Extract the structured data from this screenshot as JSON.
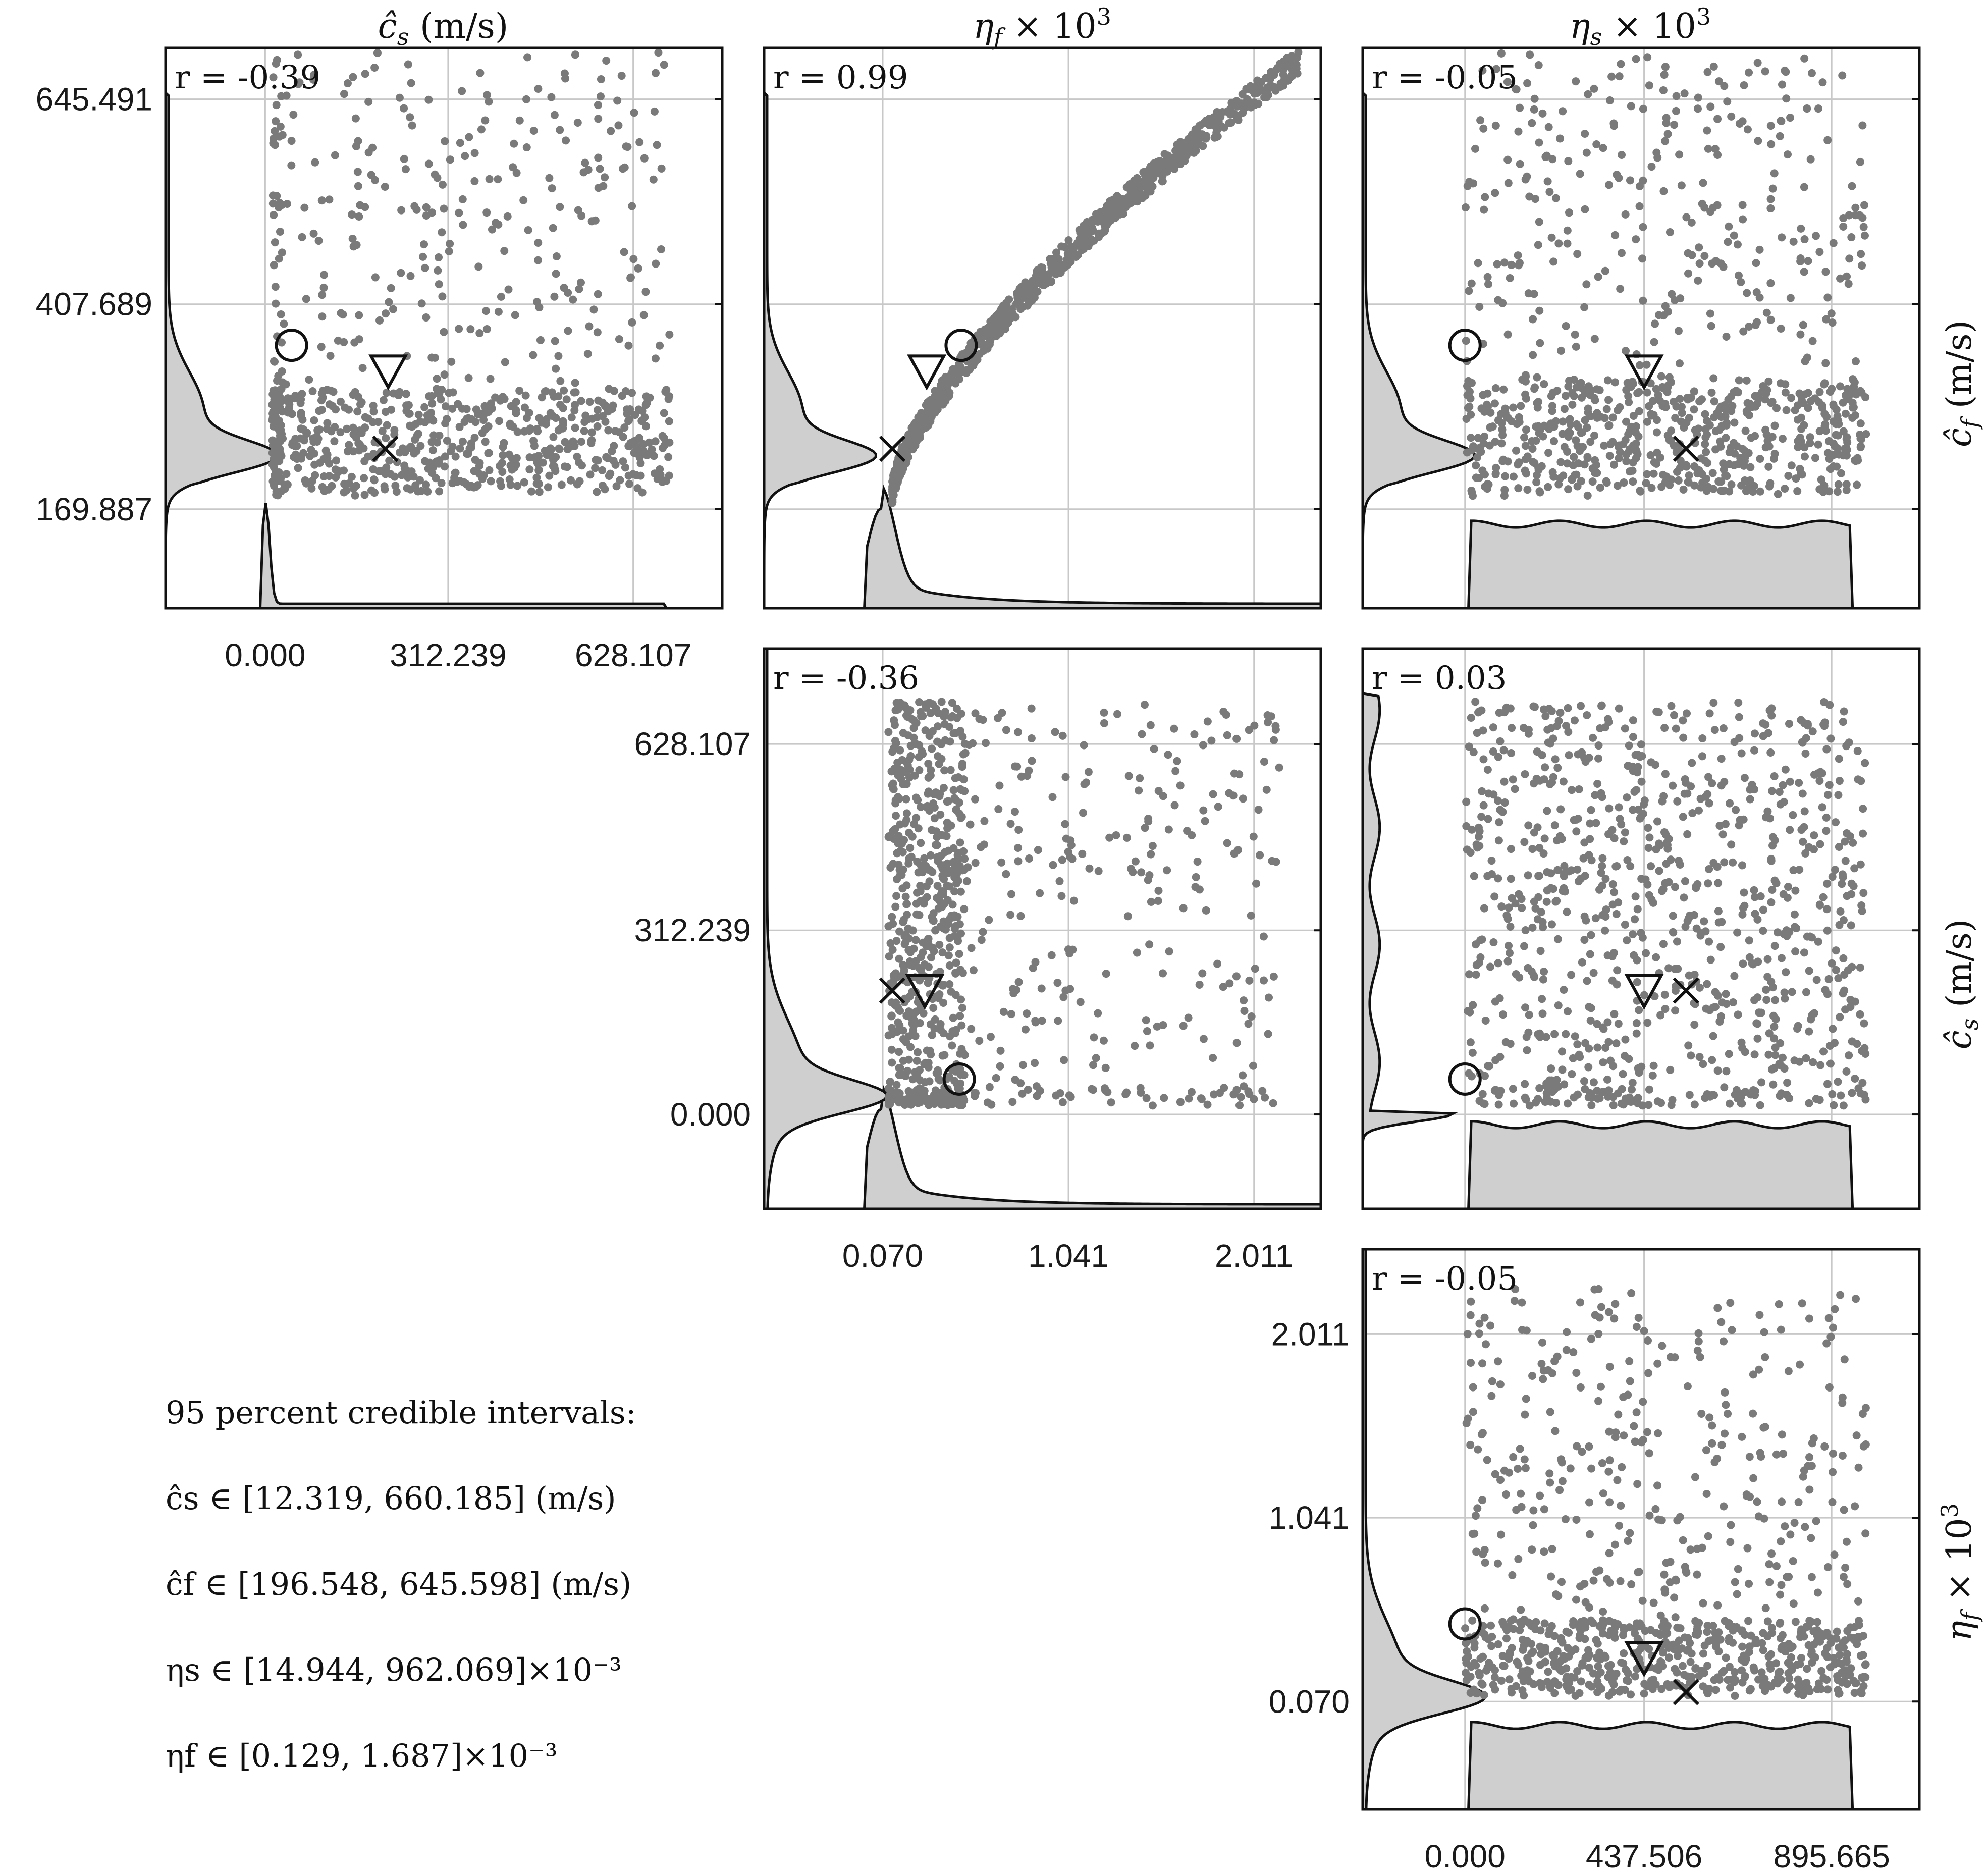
{
  "chart_data": [
    {
      "type": "scatter",
      "panel": "cs_vs_cf",
      "column_label": "ĉs (m/s)",
      "row_label": "ĉf (m/s)",
      "correlation_label": "r = -0.39",
      "x_ticks": [
        "0.000",
        "312.239",
        "628.107"
      ],
      "x_tick_values": [
        0.0,
        312.239,
        628.107
      ],
      "y_ticks": [
        "645.491",
        "407.689",
        "169.887"
      ],
      "y_tick_values": [
        645.491,
        407.689,
        169.887
      ],
      "xlim": [
        -170,
        780
      ],
      "ylim": [
        55,
        705
      ],
      "points_summary": {
        "x_range": [
          12,
          690
        ],
        "y_range": [
          185,
          700
        ],
        "dense_y_band": [
          190,
          310
        ],
        "count_shown": 900
      },
      "markers": {
        "circle": [
          45,
          360
        ],
        "triangle": [
          210,
          330
        ],
        "cross": [
          205,
          240
        ]
      }
    },
    {
      "type": "scatter",
      "panel": "etaf_vs_cf",
      "column_label": "ηf × 10^3",
      "correlation_label": "r = 0.99",
      "x_ticks": [
        "0.070",
        "1.041",
        "2.011"
      ],
      "x_tick_values": [
        0.07,
        1.041,
        2.011
      ],
      "y_ticks": [
        "645.491",
        "407.689",
        "169.887"
      ],
      "y_tick_values": [
        645.491,
        407.689,
        169.887
      ],
      "xlim": [
        -0.55,
        2.36
      ],
      "ylim": [
        55,
        705
      ],
      "points_summary": {
        "curve": "monotone increasing, from (0.12, 190) to (2.25, 690)",
        "count_shown": 800
      },
      "markers": {
        "circle": [
          0.48,
          360
        ],
        "triangle": [
          0.3,
          330
        ],
        "cross": [
          0.12,
          240
        ]
      }
    },
    {
      "type": "scatter",
      "panel": "etas_vs_cf",
      "column_label": "ηs × 10^3",
      "correlation_label": "r = -0.05",
      "x_ticks": [
        "0.000",
        "437.506",
        "895.665"
      ],
      "x_tick_values": [
        0.0,
        437.506,
        895.665
      ],
      "y_ticks": [
        "645.491",
        "407.689",
        "169.887"
      ],
      "y_tick_values": [
        645.491,
        407.689,
        169.887
      ],
      "xlim": [
        -250,
        1110
      ],
      "ylim": [
        55,
        705
      ],
      "points_summary": {
        "x_range": [
          0,
          980
        ],
        "y_range": [
          185,
          700
        ],
        "dense_y_band": [
          190,
          320
        ],
        "count_shown": 900
      },
      "markers": {
        "circle": [
          0,
          360
        ],
        "triangle": [
          437.5,
          330
        ],
        "cross": [
          540,
          240
        ]
      }
    },
    {
      "type": "scatter",
      "panel": "etaf_vs_cs",
      "row_label": "ĉs (m/s)",
      "correlation_label": "r = -0.36",
      "x_ticks": [
        "0.070",
        "1.041",
        "2.011"
      ],
      "x_tick_values": [
        0.07,
        1.041,
        2.011
      ],
      "y_ticks": [
        "628.107",
        "312.239",
        "0.000"
      ],
      "y_tick_values": [
        628.107,
        312.239,
        0.0
      ],
      "xlim": [
        -0.55,
        2.36
      ],
      "ylim": [
        -160,
        790
      ],
      "points_summary": {
        "x_range": [
          0.1,
          2.2
        ],
        "y_range": [
          15,
          700
        ],
        "dense_x_band": [
          0.1,
          0.5
        ],
        "count_shown": 900
      },
      "markers": {
        "circle": [
          0.47,
          60
        ],
        "triangle": [
          0.29,
          210
        ],
        "cross": [
          0.12,
          210
        ]
      }
    },
    {
      "type": "scatter",
      "panel": "etas_vs_cs",
      "correlation_label": "r = 0.03",
      "x_ticks": [
        "0.000",
        "437.506",
        "895.665"
      ],
      "x_tick_values": [
        0.0,
        437.506,
        895.665
      ],
      "y_ticks": [
        "628.107",
        "312.239",
        "0.000"
      ],
      "y_tick_values": [
        628.107,
        312.239,
        0.0
      ],
      "xlim": [
        -250,
        1110
      ],
      "ylim": [
        -160,
        790
      ],
      "points_summary": {
        "x_range": [
          0,
          980
        ],
        "y_range": [
          15,
          700
        ],
        "count_shown": 900
      },
      "markers": {
        "circle": [
          0,
          60
        ],
        "triangle": [
          437.5,
          210
        ],
        "cross": [
          540,
          210
        ]
      }
    },
    {
      "type": "scatter",
      "panel": "etas_vs_etaf",
      "row_label": "ηf × 10^3",
      "correlation_label": "r = -0.05",
      "x_ticks": [
        "0.000",
        "437.506",
        "895.665"
      ],
      "x_tick_values": [
        0.0,
        437.506,
        895.665
      ],
      "y_ticks": [
        "2.011",
        "1.041",
        "0.070"
      ],
      "y_tick_values": [
        2.011,
        1.041,
        0.07
      ],
      "xlim": [
        -250,
        1110
      ],
      "ylim": [
        -0.5,
        2.46
      ],
      "points_summary": {
        "x_range": [
          0,
          980
        ],
        "y_range": [
          0.1,
          2.25
        ],
        "dense_y_band": [
          0.1,
          0.5
        ],
        "count_shown": 900
      },
      "markers": {
        "circle": [
          0,
          0.48
        ],
        "triangle": [
          437.5,
          0.3
        ],
        "cross": [
          540,
          0.12
        ]
      }
    }
  ],
  "credible_intervals": {
    "heading": "95 percent credible intervals:",
    "lines": [
      "ĉs ∈ [12.319, 660.185] (m/s)",
      "ĉf ∈ [196.548, 645.598] (m/s)",
      "ηs ∈ [14.944, 962.069]×10⁻³",
      "ηf ∈ [0.129, 1.687]×10⁻³"
    ]
  }
}
